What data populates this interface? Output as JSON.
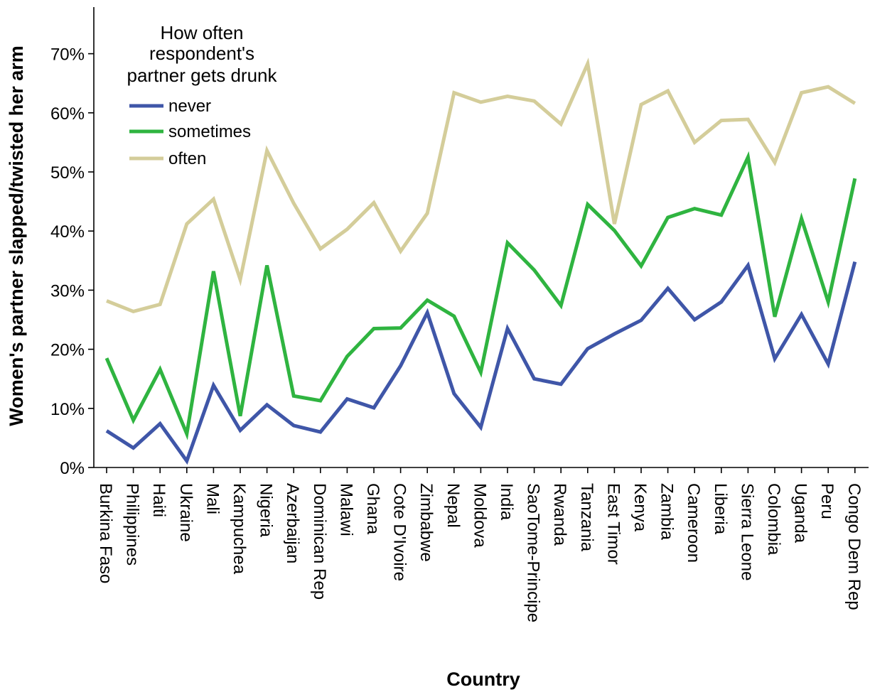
{
  "chart_data": {
    "type": "line",
    "xlabel": "Country",
    "ylabel": "Women's partner slapped/twisted her arm",
    "ylim": [
      0,
      0.7
    ],
    "y_ticks": [
      {
        "value": 0,
        "label": "0%"
      },
      {
        "value": 0.1,
        "label": "10%"
      },
      {
        "value": 0.2,
        "label": "20%"
      },
      {
        "value": 0.3,
        "label": "30%"
      },
      {
        "value": 0.4,
        "label": "40%"
      },
      {
        "value": 0.5,
        "label": "50%"
      },
      {
        "value": 0.6,
        "label": "60%"
      },
      {
        "value": 0.7,
        "label": "70%"
      }
    ],
    "grid": false,
    "legend": {
      "title_lines": [
        "How often",
        "respondent's",
        "partner gets drunk"
      ],
      "placement": "top-left"
    },
    "categories": [
      "Burkina Faso",
      "Philippines",
      "Haiti",
      "Ukraine",
      "Mali",
      "Kampuchea",
      "Nigeria",
      "Azerbaijan",
      "Dominican Rep",
      "Malawi",
      "Ghana",
      "Cote D'Ivoire",
      "Zimbabwe",
      "Nepal",
      "Moldova",
      "India",
      "SaoTome-Principe",
      "Rwanda",
      "Tanzania",
      "East Timor",
      "Kenya",
      "Zambia",
      "Cameroon",
      "Liberia",
      "Sierra Leone",
      "Colombia",
      "Uganda",
      "Peru",
      "Congo Dem Rep"
    ],
    "series": [
      {
        "name": "never",
        "color": "#3f56a8",
        "values": [
          0.062,
          0.033,
          0.074,
          0.011,
          0.139,
          0.063,
          0.106,
          0.071,
          0.06,
          0.116,
          0.101,
          0.172,
          0.262,
          0.125,
          0.068,
          0.235,
          0.15,
          0.141,
          0.201,
          0.226,
          0.249,
          0.303,
          0.25,
          0.28,
          0.342,
          0.184,
          0.259,
          0.175,
          0.348
        ]
      },
      {
        "name": "sometimes",
        "color": "#2fb440",
        "values": [
          0.185,
          0.08,
          0.166,
          0.057,
          0.332,
          0.087,
          0.342,
          0.121,
          0.113,
          0.188,
          0.235,
          0.236,
          0.283,
          0.256,
          0.161,
          0.38,
          0.334,
          0.274,
          0.445,
          0.401,
          0.341,
          0.423,
          0.438,
          0.427,
          0.525,
          0.255,
          0.421,
          0.28,
          0.489
        ]
      },
      {
        "name": "often",
        "color": "#d4cd9a",
        "values": [
          0.282,
          0.264,
          0.276,
          0.412,
          0.454,
          0.318,
          0.536,
          0.447,
          0.37,
          0.403,
          0.448,
          0.366,
          0.43,
          0.634,
          0.618,
          0.628,
          0.62,
          0.581,
          0.683,
          0.412,
          0.614,
          0.637,
          0.55,
          0.587,
          0.589,
          0.516,
          0.634,
          0.644,
          0.616
        ]
      }
    ]
  }
}
